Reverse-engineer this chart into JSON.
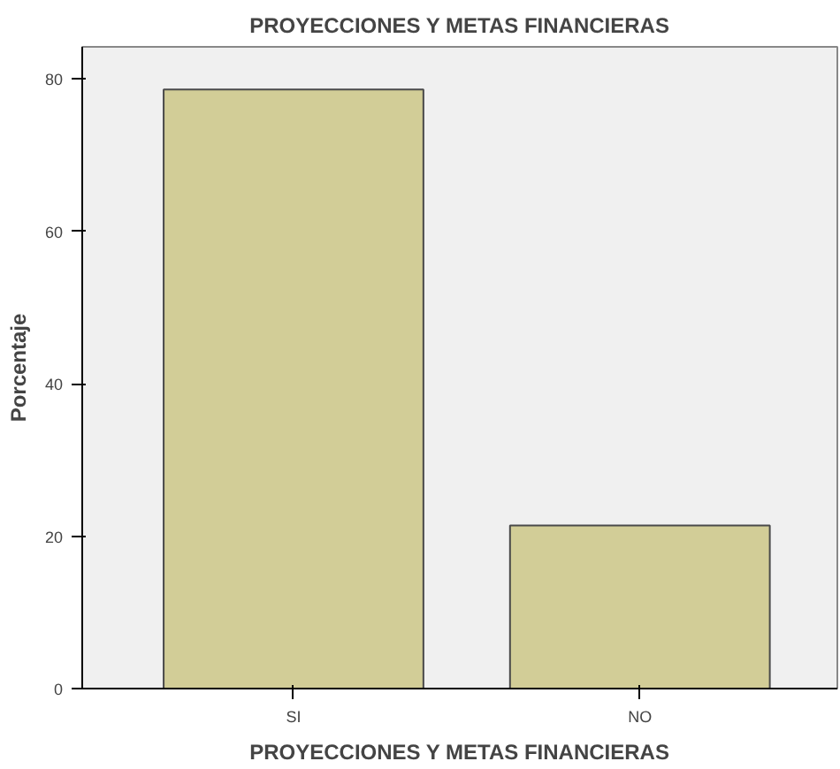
{
  "chart_data": {
    "type": "bar",
    "title": "PROYECCIONES Y METAS FINANCIERAS",
    "xlabel": "PROYECCIONES Y METAS FINANCIERAS",
    "ylabel": "Porcentaje",
    "categories": [
      "SI",
      "NO"
    ],
    "values": [
      78.6,
      21.4
    ],
    "color": "#d2cd97",
    "ylim": [
      0,
      84.2
    ],
    "yticks": [
      0,
      20,
      40,
      60,
      80
    ],
    "grid": false
  }
}
